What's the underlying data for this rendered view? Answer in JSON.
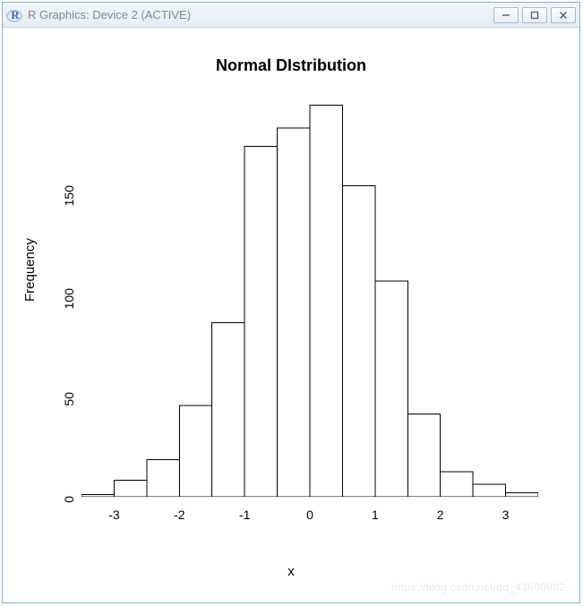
{
  "window": {
    "title": "R Graphics: Device 2 (ACTIVE)",
    "title_color": "#7a8a96",
    "border_color": "#87aecb",
    "titlebar_bg_top": "#f0f5fa",
    "titlebar_bg_bottom": "#e6edf4",
    "logo_letter": "R",
    "logo_color": "#3a68b6"
  },
  "controls": {
    "minimize": "minimize",
    "maximize": "maximize",
    "close": "close"
  },
  "chart": {
    "type": "histogram",
    "title": "Normal DIstribution",
    "title_fontsize": 18,
    "title_fontweight": "bold",
    "xlabel": "x",
    "ylabel": "Frequency",
    "label_fontsize": 15,
    "tick_fontsize": 14,
    "background_color": "#ffffff",
    "bar_fill": "#ffffff",
    "bar_border": "#000000",
    "bar_border_width": 1,
    "axis_color": "#000000",
    "axis_width": 1,
    "tick_length": 6,
    "xlim": [
      -3.5,
      3.5
    ],
    "ylim": [
      0,
      190
    ],
    "y_axis_max_draw": 160,
    "x_ticks": [
      -3,
      -2,
      -1,
      0,
      1,
      2,
      3
    ],
    "y_ticks": [
      0,
      50,
      100,
      150
    ],
    "bin_width": 0.5,
    "bins": [
      {
        "lo": -3.5,
        "hi": -3.0,
        "count": 1
      },
      {
        "lo": -3.0,
        "hi": -2.5,
        "count": 8
      },
      {
        "lo": -2.5,
        "hi": -2.0,
        "count": 18
      },
      {
        "lo": -2.0,
        "hi": -1.5,
        "count": 44
      },
      {
        "lo": -1.5,
        "hi": -1.0,
        "count": 84
      },
      {
        "lo": -1.0,
        "hi": -0.5,
        "count": 169
      },
      {
        "lo": -0.5,
        "hi": 0.0,
        "count": 178
      },
      {
        "lo": 0.0,
        "hi": 0.5,
        "count": 189
      },
      {
        "lo": 0.5,
        "hi": 1.0,
        "count": 150
      },
      {
        "lo": 1.0,
        "hi": 1.5,
        "count": 104
      },
      {
        "lo": 1.5,
        "hi": 2.0,
        "count": 40
      },
      {
        "lo": 2.0,
        "hi": 2.5,
        "count": 12
      },
      {
        "lo": 2.5,
        "hi": 3.0,
        "count": 6
      },
      {
        "lo": 3.0,
        "hi": 3.5,
        "count": 2
      }
    ]
  },
  "watermark": "https://blog.csdn.net/qq_43600902"
}
